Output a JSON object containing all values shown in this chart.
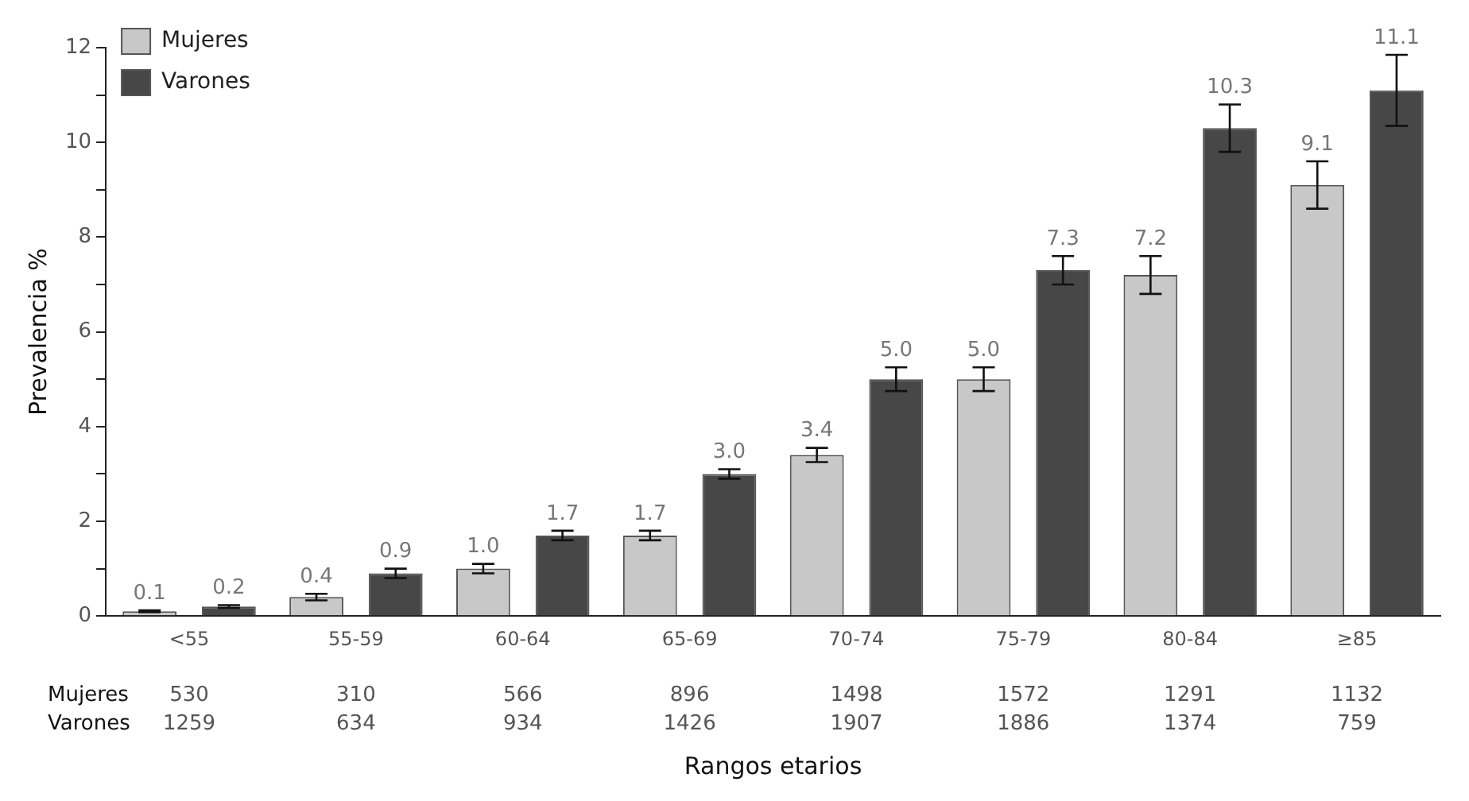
{
  "chart_data": {
    "type": "bar",
    "xlabel": "Rangos etarios",
    "ylabel": "Prevalencia %",
    "categories": [
      "<55",
      "55-59",
      "60-64",
      "65-69",
      "70-74",
      "75-79",
      "80-84",
      "≥85"
    ],
    "series": [
      {
        "name": "Mujeres",
        "color": "#c8c8c8",
        "values": [
          0.1,
          0.4,
          1.0,
          1.7,
          3.4,
          5.0,
          7.2,
          9.1
        ],
        "value_labels": [
          "0.1",
          "0.4",
          "1.0",
          "1.7",
          "3.4",
          "5.0",
          "7.2",
          "9.1"
        ],
        "errors": [
          0.02,
          0.07,
          0.1,
          0.1,
          0.15,
          0.25,
          0.4,
          0.5
        ]
      },
      {
        "name": "Varones",
        "color": "#474747",
        "values": [
          0.2,
          0.9,
          1.7,
          3.0,
          5.0,
          7.3,
          10.3,
          11.1
        ],
        "value_labels": [
          "0.2",
          "0.9",
          "1.7",
          "3.0",
          "5.0",
          "7.3",
          "10.3",
          "11.1"
        ],
        "errors": [
          0.03,
          0.1,
          0.1,
          0.1,
          0.25,
          0.3,
          0.5,
          0.75
        ]
      }
    ],
    "ylim": [
      0,
      12
    ],
    "yticks": [
      0,
      {
        "value": 1,
        "label": null
      },
      2,
      {
        "value": 3,
        "label": null
      },
      4,
      {
        "value": 5,
        "label": null
      },
      6,
      {
        "value": 7,
        "label": null
      },
      8,
      {
        "value": 9,
        "label": null
      },
      10,
      {
        "value": 11,
        "label": null
      },
      12
    ],
    "grid": false,
    "legend": "top left",
    "annotations": [
      "Mujeres",
      "530",
      "310",
      "566",
      "896",
      "1498",
      "1572",
      "1291",
      "1132",
      "Varones",
      "1259",
      "634",
      "934",
      "1426",
      "1907",
      "1886",
      "1374",
      "759"
    ]
  }
}
